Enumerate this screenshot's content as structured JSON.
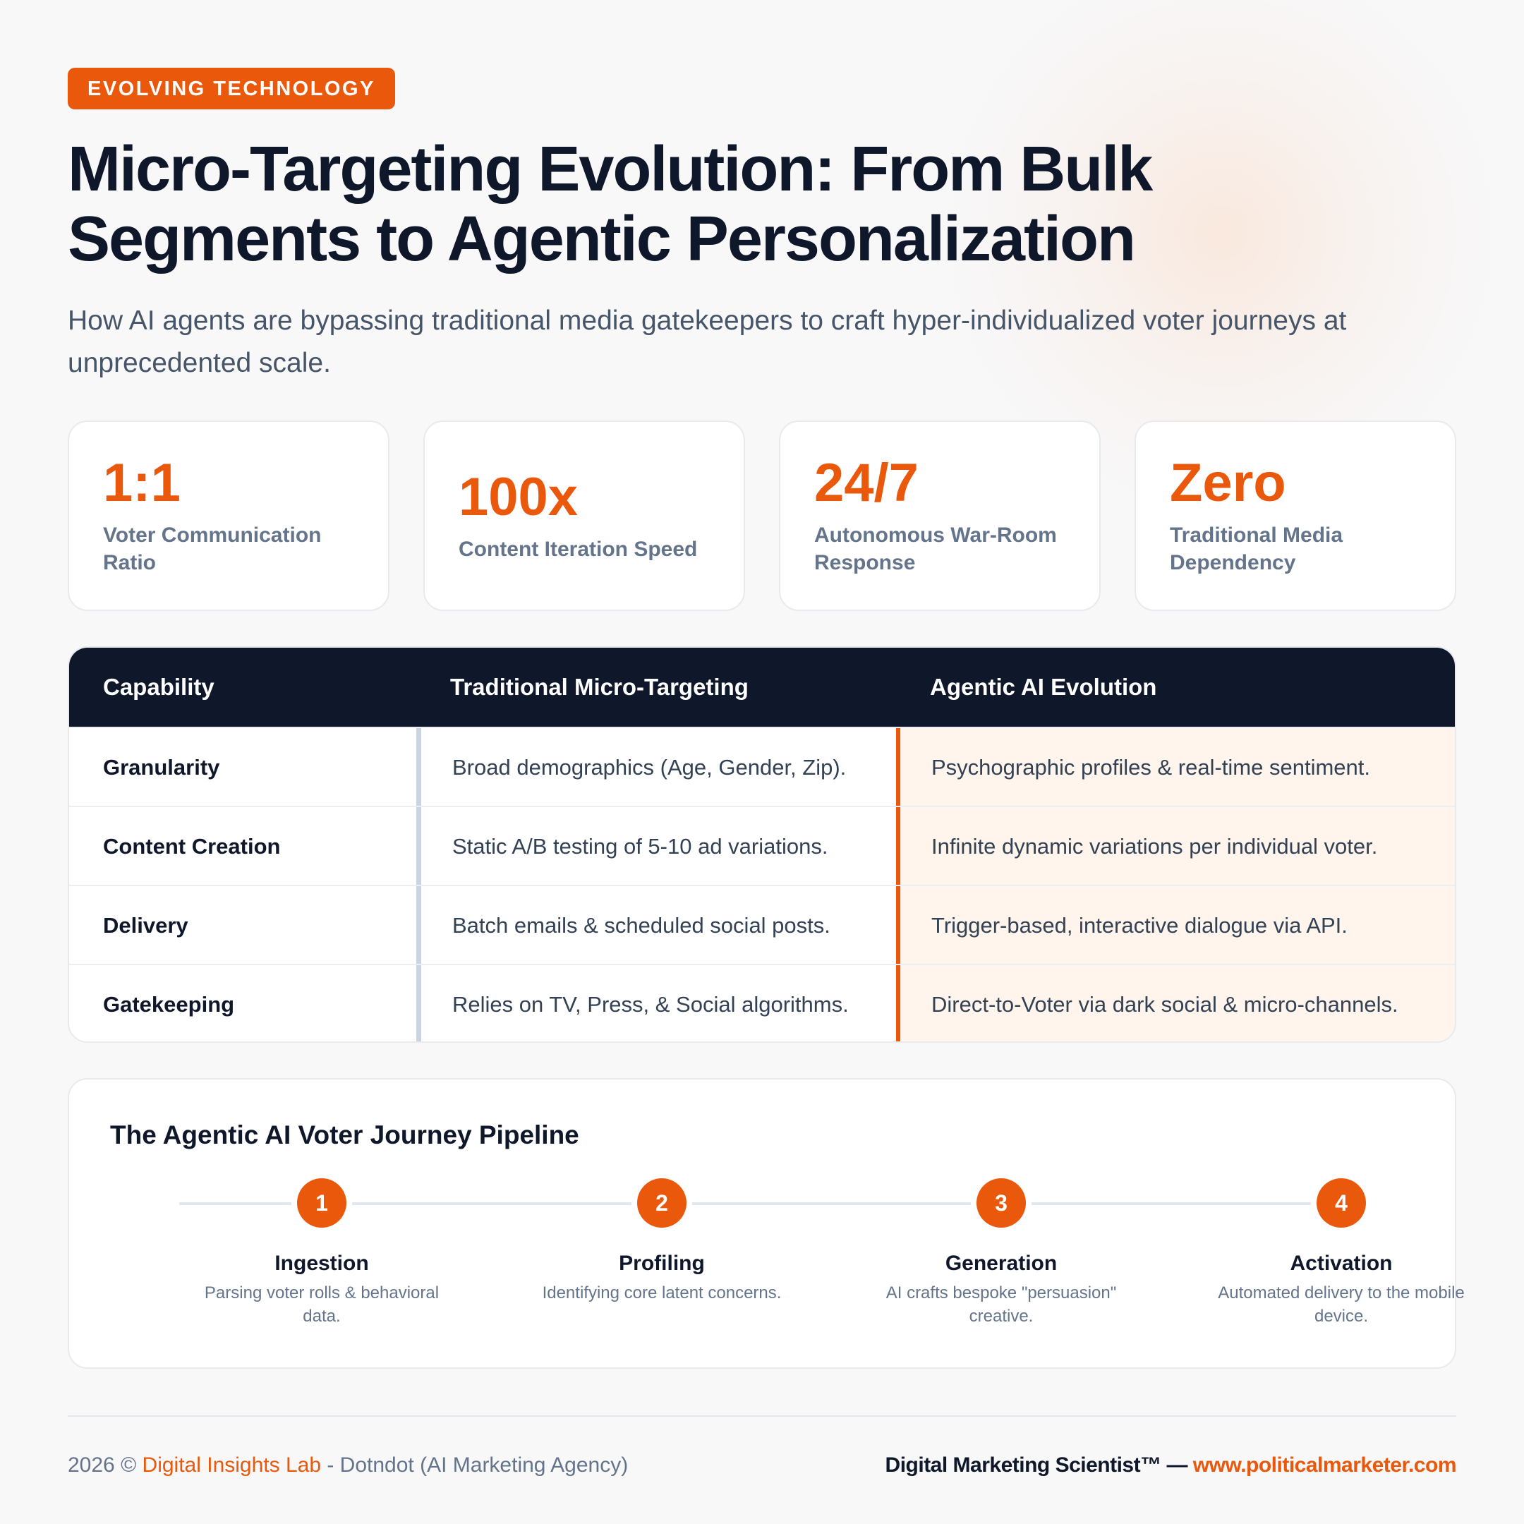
{
  "badge": "EVOLVING TECHNOLOGY",
  "title": "Micro-Targeting Evolution: From Bulk Segments to Agentic Personalization",
  "subtitle": "How AI agents are bypassing traditional media gatekeepers to craft hyper-individualized voter journeys at unprecedented scale.",
  "stats": [
    {
      "value": "1:1",
      "label": "Voter Communication Ratio"
    },
    {
      "value": "100x",
      "label": "Content Iteration Speed"
    },
    {
      "value": "24/7",
      "label": "Autonomous War-Room Response"
    },
    {
      "value": "Zero",
      "label": "Traditional Media Dependency"
    }
  ],
  "table": {
    "headers": [
      "Capability",
      "Traditional Micro-Targeting",
      "Agentic AI Evolution"
    ],
    "rows": [
      [
        "Granularity",
        "Broad demographics (Age, Gender, Zip).",
        "Psychographic profiles & real-time sentiment."
      ],
      [
        "Content Creation",
        "Static A/B testing of 5-10 ad variations.",
        "Infinite dynamic variations per individual voter."
      ],
      [
        "Delivery",
        "Batch emails & scheduled social posts.",
        "Trigger-based, interactive dialogue via API."
      ],
      [
        "Gatekeeping",
        "Relies on TV, Press, & Social algorithms.",
        "Direct-to-Voter via dark social & micro-channels."
      ]
    ]
  },
  "pipeline": {
    "title": "The Agentic AI Voter Journey Pipeline",
    "steps": [
      {
        "num": "1",
        "name": "Ingestion",
        "desc": "Parsing voter rolls & behavioral data."
      },
      {
        "num": "2",
        "name": "Profiling",
        "desc": "Identifying core latent concerns."
      },
      {
        "num": "3",
        "name": "Generation",
        "desc": "AI crafts bespoke \"persuasion\" creative."
      },
      {
        "num": "4",
        "name": "Activation",
        "desc": "Automated delivery to the mobile device."
      }
    ]
  },
  "footer": {
    "year": "2026 ©",
    "org": "Digital Insights Lab",
    "rest": "- Dotndot (AI Marketing Agency)",
    "brand": "Digital Marketing Scientist™ —",
    "url": "www.politicalmarketer.com"
  },
  "colors": {
    "accent": "#ea580c",
    "dark": "#0f172a",
    "muted": "#64748b"
  }
}
